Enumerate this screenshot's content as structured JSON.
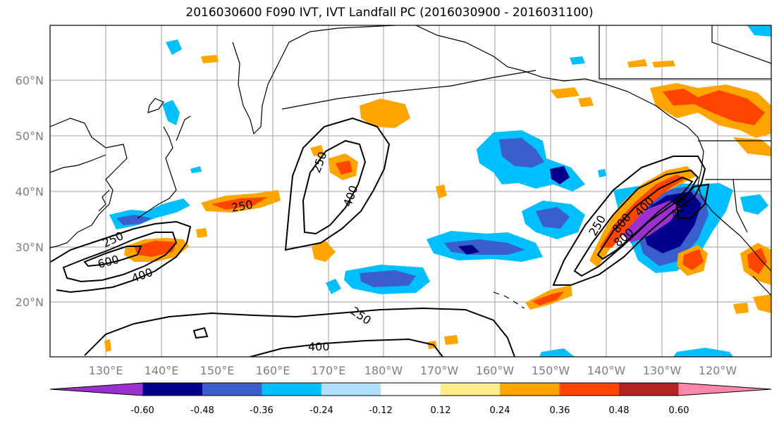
{
  "title": "2016030600 F090 IVT, IVT Landfall PC (2016030900 - 2016031100)",
  "map": {
    "lat_labels": [
      "60°N",
      "50°N",
      "40°N",
      "30°N",
      "20°N"
    ],
    "lon_labels": [
      "130°E",
      "140°E",
      "150°E",
      "160°E",
      "170°E",
      "180°W",
      "170°W",
      "160°W",
      "150°W",
      "140°W",
      "130°W",
      "120°W"
    ],
    "contour_labels": [
      "250",
      "400",
      "250",
      "600",
      "400",
      "250",
      "400",
      "250",
      "800",
      "400",
      "800",
      "250",
      "400"
    ]
  },
  "colorbar": {
    "colors": [
      "#9b30d0",
      "#00008b",
      "#3a5fcd",
      "#00bfff",
      "#b0e2ff",
      "#ffffff",
      "#ffec8b",
      "#ffa500",
      "#ff4500",
      "#b22222",
      "#ff88aa"
    ],
    "tick_labels": [
      "-0.60",
      "-0.48",
      "-0.36",
      "-0.24",
      "-0.12",
      "0.12",
      "0.24",
      "0.36",
      "0.48",
      "0.60"
    ]
  },
  "colors": {
    "grid": "#a0a0a0",
    "coast": "#000000",
    "contour": "#000000"
  }
}
